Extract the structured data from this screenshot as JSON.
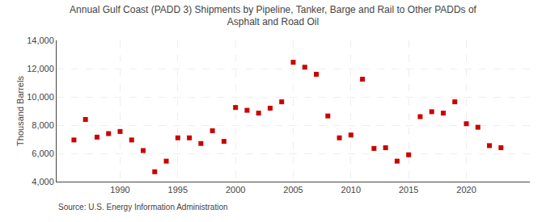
{
  "chart_data": {
    "type": "scatter",
    "title": "Annual Gulf Coast (PADD 3) Shipments by Pipeline, Tanker, Barge and Rail to Other PADDs of\nAsphalt and Road Oil",
    "ylabel": "Thousand Barrels",
    "annotations": [
      "Source: U.S. Energy Information Administration"
    ],
    "x": [
      1986,
      1987,
      1988,
      1989,
      1990,
      1991,
      1992,
      1993,
      1994,
      1995,
      1996,
      1997,
      1998,
      1999,
      2000,
      2001,
      2002,
      2003,
      2004,
      2005,
      2006,
      2007,
      2008,
      2009,
      2010,
      2011,
      2012,
      2013,
      2014,
      2015,
      2016,
      2017,
      2018,
      2019,
      2020,
      2021,
      2022,
      2023
    ],
    "values": [
      6950,
      8400,
      7150,
      7400,
      7550,
      6950,
      6200,
      4700,
      5450,
      7100,
      7100,
      6700,
      7600,
      6850,
      9250,
      9050,
      8850,
      9200,
      9650,
      12450,
      12100,
      11600,
      8650,
      7100,
      7300,
      11250,
      6350,
      6400,
      5450,
      5900,
      8600,
      8950,
      8850,
      9650,
      8100,
      7850,
      6550,
      6400
    ],
    "color": "#cc0000",
    "marker": "square",
    "xlim": [
      1984.5,
      2025.5
    ],
    "xticks": [
      1990,
      1995,
      2000,
      2005,
      2010,
      2015,
      2020
    ],
    "ylim": [
      4000,
      14000
    ],
    "yticks": [
      {
        "value": 4000,
        "label": "4,000"
      },
      {
        "value": 6000,
        "label": "6,000"
      },
      {
        "value": 8000,
        "label": "8,000"
      },
      {
        "value": 10000,
        "label": "10,000"
      },
      {
        "value": 12000,
        "label": "12,000"
      },
      {
        "value": 14000,
        "label": "14,000"
      }
    ],
    "grid": true
  }
}
